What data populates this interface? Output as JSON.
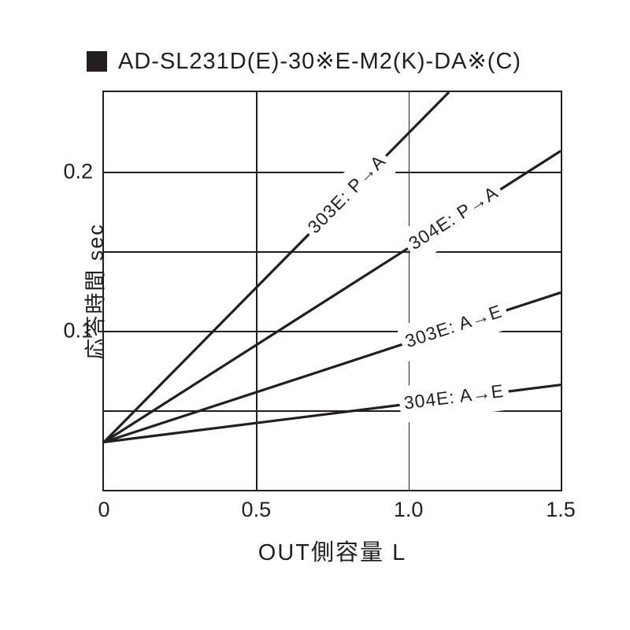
{
  "title": "AD-SL231D(E)-30※E-M2(K)-DA※(C)",
  "chart": {
    "type": "line",
    "background_color": "#ffffff",
    "axis_color": "#231f20",
    "grid_color": "#231f20",
    "line_color": "#231f20",
    "line_width": 3.2,
    "border_width": 2,
    "grid_width": 1.5,
    "font_family": "Helvetica Neue, Arial, Hiragino Kaku Gothic ProN, Meiryo, sans-serif",
    "title_fontsize": 29,
    "tick_fontsize": 27,
    "label_fontsize": 29,
    "series_label_fontsize": 23,
    "xlim": [
      0,
      1.5
    ],
    "ylim": [
      0,
      0.25
    ],
    "xticks": [
      0,
      0.5,
      1.0,
      1.5
    ],
    "xtick_labels": [
      "0",
      "0.5",
      "1.0",
      "1.5"
    ],
    "yticks": [
      0.1,
      0.2
    ],
    "ytick_labels": [
      "0.1",
      "0.2"
    ],
    "y_gridlines": [
      0.05,
      0.1,
      0.15,
      0.2
    ],
    "x_gridlines": [
      0.5,
      1.0
    ],
    "xlabel": "OUT側容量   L",
    "ylabel": "応答時間   sec",
    "series": [
      {
        "name": "303E: P→A",
        "x": [
          0.0,
          1.133
        ],
        "y": [
          0.03,
          0.25
        ],
        "label_anchor_x": 0.8,
        "label_pad_w": 0.36,
        "label_pad_h": 0.019
      },
      {
        "name": "304E: P→A",
        "x": [
          0.0,
          1.5
        ],
        "y": [
          0.03,
          0.213
        ],
        "label_anchor_x": 1.15,
        "label_pad_w": 0.36,
        "label_pad_h": 0.019
      },
      {
        "name": "303E: A→E",
        "x": [
          0.0,
          1.5
        ],
        "y": [
          0.03,
          0.124
        ],
        "label_anchor_x": 1.15,
        "label_pad_w": 0.36,
        "label_pad_h": 0.019
      },
      {
        "name": "304E: A→E",
        "x": [
          0.0,
          1.5
        ],
        "y": [
          0.03,
          0.066
        ],
        "label_anchor_x": 1.15,
        "label_pad_w": 0.36,
        "label_pad_h": 0.019
      }
    ]
  }
}
